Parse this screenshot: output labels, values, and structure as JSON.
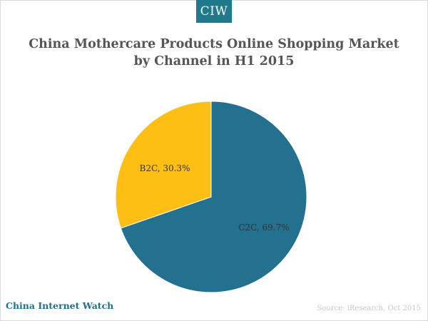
{
  "logo": {
    "label": "CIW"
  },
  "footer": {
    "brand": "China Internet Watch",
    "source": "Source: iResearch, Oct 2015"
  },
  "colors": {
    "accent": "#1f7a8c",
    "c2c": "#23708f",
    "b2c": "#fdbf14"
  },
  "chart_data": {
    "type": "pie",
    "title_line1": "China Mothercare Products Online Shopping Market",
    "title_line2": "by Channel in H1 2015",
    "slices": [
      {
        "label": "C2C",
        "value": 69.7,
        "display": "C2C, 69.7%",
        "color": "#23708f"
      },
      {
        "label": "B2C",
        "value": 30.3,
        "display": "B2C, 30.3%",
        "color": "#fdbf14"
      }
    ],
    "start_angle": "12 o'clock",
    "direction": "clockwise",
    "legend": "none"
  }
}
